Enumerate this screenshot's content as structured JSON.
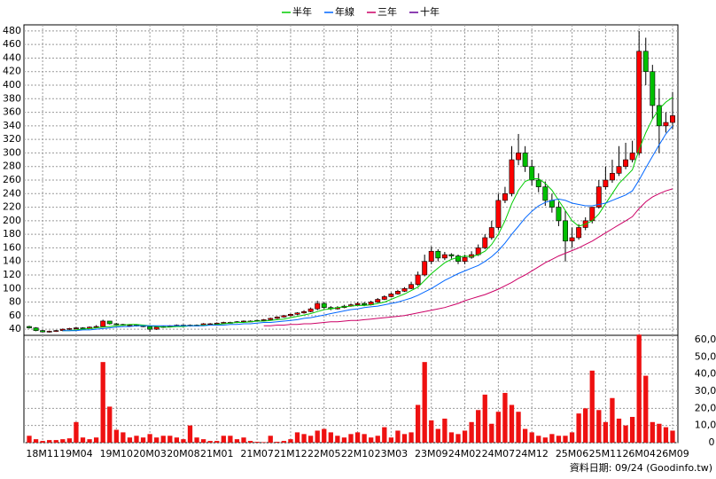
{
  "chart_data": {
    "type": "candlestick",
    "categories": [
      null,
      null,
      "18M11",
      null,
      null,
      null,
      null,
      "19M04",
      null,
      null,
      null,
      null,
      null,
      "19M10",
      null,
      null,
      null,
      null,
      "20M03",
      null,
      null,
      null,
      null,
      "20M08",
      null,
      null,
      null,
      null,
      "21M01",
      null,
      null,
      null,
      null,
      null,
      "21M07",
      null,
      null,
      null,
      null,
      "21M12",
      null,
      null,
      null,
      null,
      "22M05",
      null,
      null,
      null,
      null,
      "22M10",
      null,
      null,
      null,
      null,
      "23M03",
      null,
      null,
      null,
      null,
      null,
      "23M09",
      null,
      null,
      null,
      null,
      "24M02",
      null,
      null,
      null,
      null,
      "24M07",
      null,
      null,
      null,
      null,
      "24M12",
      null,
      null,
      null,
      null,
      null,
      "25M06",
      null,
      null,
      null,
      null,
      "25M11",
      null,
      null,
      null,
      null,
      "26M04",
      null,
      null,
      null,
      null,
      "26M09"
    ],
    "open": [
      44,
      42,
      38,
      36,
      37,
      38,
      40,
      41,
      42,
      41,
      43,
      44,
      52,
      48,
      47,
      46,
      46,
      45,
      44,
      40,
      43,
      44,
      45,
      46,
      45,
      46,
      46,
      48,
      48,
      49,
      50,
      50,
      51,
      52,
      52,
      53,
      54,
      56,
      58,
      60,
      62,
      64,
      66,
      70,
      78,
      72,
      70,
      72,
      74,
      76,
      78,
      76,
      80,
      84,
      88,
      92,
      96,
      100,
      106,
      120,
      140,
      155,
      145,
      150,
      148,
      140,
      146,
      150,
      160,
      175,
      190,
      230,
      240,
      290,
      300,
      280,
      260,
      250,
      230,
      220,
      200,
      170,
      175,
      190,
      200,
      220,
      250,
      260,
      270,
      280,
      290,
      300,
      450,
      420,
      370,
      340,
      345
    ],
    "high": [
      45,
      43,
      39,
      38,
      39,
      41,
      42,
      43,
      43,
      44,
      46,
      54,
      52,
      49,
      48,
      47,
      47,
      46,
      45,
      44,
      45,
      46,
      47,
      47,
      47,
      47,
      49,
      49,
      50,
      51,
      51,
      52,
      53,
      53,
      54,
      55,
      57,
      59,
      61,
      63,
      65,
      68,
      72,
      82,
      80,
      74,
      74,
      76,
      78,
      80,
      80,
      82,
      86,
      90,
      94,
      98,
      102,
      110,
      125,
      150,
      162,
      158,
      154,
      152,
      150,
      150,
      155,
      165,
      180,
      200,
      240,
      250,
      310,
      328,
      310,
      290,
      270,
      258,
      240,
      228,
      215,
      190,
      195,
      205,
      220,
      260,
      280,
      290,
      310,
      315,
      318,
      480,
      470,
      430,
      395,
      360,
      390
    ],
    "low": [
      41,
      37,
      35,
      35,
      36,
      37,
      39,
      40,
      40,
      41,
      42,
      43,
      47,
      46,
      45,
      45,
      44,
      43,
      36,
      39,
      42,
      43,
      44,
      44,
      44,
      45,
      45,
      47,
      47,
      48,
      49,
      49,
      50,
      51,
      51,
      52,
      53,
      55,
      57,
      59,
      61,
      63,
      65,
      68,
      70,
      68,
      69,
      71,
      73,
      75,
      74,
      75,
      79,
      83,
      87,
      91,
      95,
      99,
      104,
      118,
      136,
      140,
      142,
      144,
      136,
      136,
      144,
      148,
      158,
      172,
      186,
      226,
      236,
      282,
      272,
      252,
      242,
      222,
      212,
      192,
      140,
      160,
      172,
      186,
      196,
      218,
      246,
      256,
      266,
      276,
      286,
      296,
      400,
      350,
      300,
      330,
      335
    ],
    "close": [
      42,
      38,
      36,
      37,
      38,
      40,
      41,
      42,
      41,
      43,
      44,
      52,
      48,
      47,
      46,
      46,
      45,
      44,
      40,
      43,
      44,
      45,
      46,
      45,
      46,
      46,
      48,
      48,
      49,
      50,
      50,
      51,
      52,
      52,
      53,
      54,
      56,
      58,
      60,
      62,
      64,
      66,
      70,
      78,
      72,
      70,
      72,
      74,
      76,
      78,
      76,
      80,
      84,
      88,
      92,
      96,
      100,
      106,
      120,
      140,
      155,
      145,
      150,
      148,
      140,
      146,
      150,
      160,
      175,
      190,
      230,
      240,
      290,
      300,
      280,
      260,
      250,
      230,
      220,
      200,
      170,
      175,
      190,
      200,
      220,
      250,
      260,
      270,
      280,
      290,
      300,
      450,
      420,
      370,
      340,
      345,
      355
    ],
    "volume": [
      4000,
      2000,
      1000,
      1500,
      1500,
      2000,
      2500,
      12000,
      3000,
      2000,
      3000,
      47000,
      21000,
      7500,
      6000,
      3000,
      4000,
      3000,
      5000,
      3000,
      4000,
      4000,
      3000,
      2000,
      10000,
      3000,
      2000,
      1000,
      1000,
      4000,
      4000,
      2000,
      3000,
      1000,
      500,
      300,
      4000,
      500,
      1000,
      2000,
      6000,
      5000,
      4000,
      7000,
      8000,
      6000,
      4000,
      3000,
      5000,
      6000,
      5000,
      3000,
      4000,
      9000,
      3000,
      7000,
      5000,
      6000,
      22000,
      47000,
      13000,
      8000,
      14000,
      6000,
      5000,
      7000,
      12000,
      19000,
      28000,
      11000,
      18000,
      29000,
      22000,
      18000,
      8000,
      6000,
      4000,
      3000,
      5000,
      4000,
      4000,
      6000,
      17000,
      20000,
      42000,
      19000,
      12000,
      26000,
      14000,
      10000,
      15000,
      63000,
      39000,
      12000,
      11000,
      9000,
      7000
    ],
    "up_color": "#ff0000",
    "down_color": "#00c000",
    "volume_color": "#ee1111",
    "series": [
      {
        "name": "半年",
        "color": "#00cc00",
        "values": [
          null,
          null,
          null,
          null,
          null,
          38,
          38,
          39,
          40,
          41,
          42,
          43,
          44,
          45,
          46,
          47,
          47,
          46,
          45,
          44,
          43,
          43,
          44,
          44,
          45,
          45,
          46,
          46,
          47,
          48,
          49,
          50,
          50,
          51,
          52,
          52,
          53,
          54,
          55,
          57,
          59,
          61,
          63,
          66,
          69,
          70,
          72,
          73,
          74,
          75,
          75,
          76,
          78,
          80,
          84,
          88,
          92,
          97,
          102,
          112,
          122,
          130,
          138,
          143,
          146,
          148,
          147,
          150,
          155,
          165,
          180,
          200,
          225,
          245,
          258,
          262,
          262,
          255,
          245,
          230,
          215,
          200,
          192,
          195,
          200,
          210,
          225,
          240,
          255,
          265,
          275,
          305,
          330,
          350,
          365,
          375,
          382
        ]
      },
      {
        "name": "年線",
        "color": "#0066ff",
        "values": [
          null,
          null,
          null,
          null,
          null,
          38,
          38,
          38,
          39,
          39,
          40,
          41,
          42,
          43,
          44,
          44,
          45,
          45,
          45,
          45,
          45,
          45,
          45,
          45,
          45,
          45,
          45,
          46,
          46,
          46,
          47,
          47,
          48,
          48,
          49,
          50,
          50,
          51,
          52,
          53,
          54,
          56,
          57,
          59,
          61,
          63,
          65,
          67,
          69,
          70,
          72,
          73,
          74,
          76,
          78,
          80,
          83,
          86,
          90,
          95,
          100,
          106,
          112,
          117,
          122,
          126,
          130,
          134,
          140,
          147,
          156,
          167,
          180,
          192,
          204,
          214,
          222,
          227,
          230,
          232,
          230,
          226,
          224,
          222,
          222,
          224,
          226,
          230,
          234,
          238,
          244,
          260,
          278,
          295,
          312,
          328,
          340
        ]
      },
      {
        "name": "三年",
        "color": "#cc0066",
        "values": [
          null,
          null,
          null,
          null,
          null,
          null,
          null,
          null,
          null,
          null,
          null,
          null,
          null,
          null,
          null,
          null,
          null,
          null,
          null,
          null,
          null,
          null,
          null,
          null,
          null,
          null,
          null,
          null,
          null,
          null,
          null,
          null,
          null,
          null,
          null,
          45,
          45,
          46,
          46,
          47,
          47,
          48,
          48,
          49,
          50,
          51,
          51,
          52,
          53,
          53,
          54,
          55,
          56,
          57,
          58,
          59,
          60,
          62,
          64,
          66,
          68,
          70,
          72,
          75,
          78,
          82,
          85,
          88,
          91,
          95,
          99,
          104,
          109,
          115,
          120,
          126,
          132,
          138,
          143,
          148,
          152,
          156,
          160,
          165,
          170,
          176,
          182,
          188,
          194,
          200,
          206,
          218,
          228,
          235,
          240,
          244,
          247
        ]
      },
      {
        "name": "十年",
        "color": "#660099"
      }
    ],
    "ylim": [
      31,
      489
    ],
    "yticks": [
      40,
      60,
      80,
      100,
      120,
      140,
      160,
      180,
      200,
      220,
      240,
      260,
      280,
      300,
      320,
      340,
      360,
      380,
      400,
      420,
      440,
      460,
      480
    ],
    "y2lim": [
      0,
      62600
    ],
    "y2ticks": [
      0,
      {
        "value": 10000,
        "label": "10,000"
      },
      {
        "value": 20000,
        "label": "20,000"
      },
      {
        "value": 30000,
        "label": "30,000"
      },
      {
        "value": 40000,
        "label": "40,000"
      },
      {
        "value": 50000,
        "label": "50,000"
      },
      {
        "value": 60000,
        "label": "60,000"
      }
    ],
    "grid": true,
    "legend": "top",
    "source": "資料日期: 09/24 (Goodinfo.tw)"
  }
}
